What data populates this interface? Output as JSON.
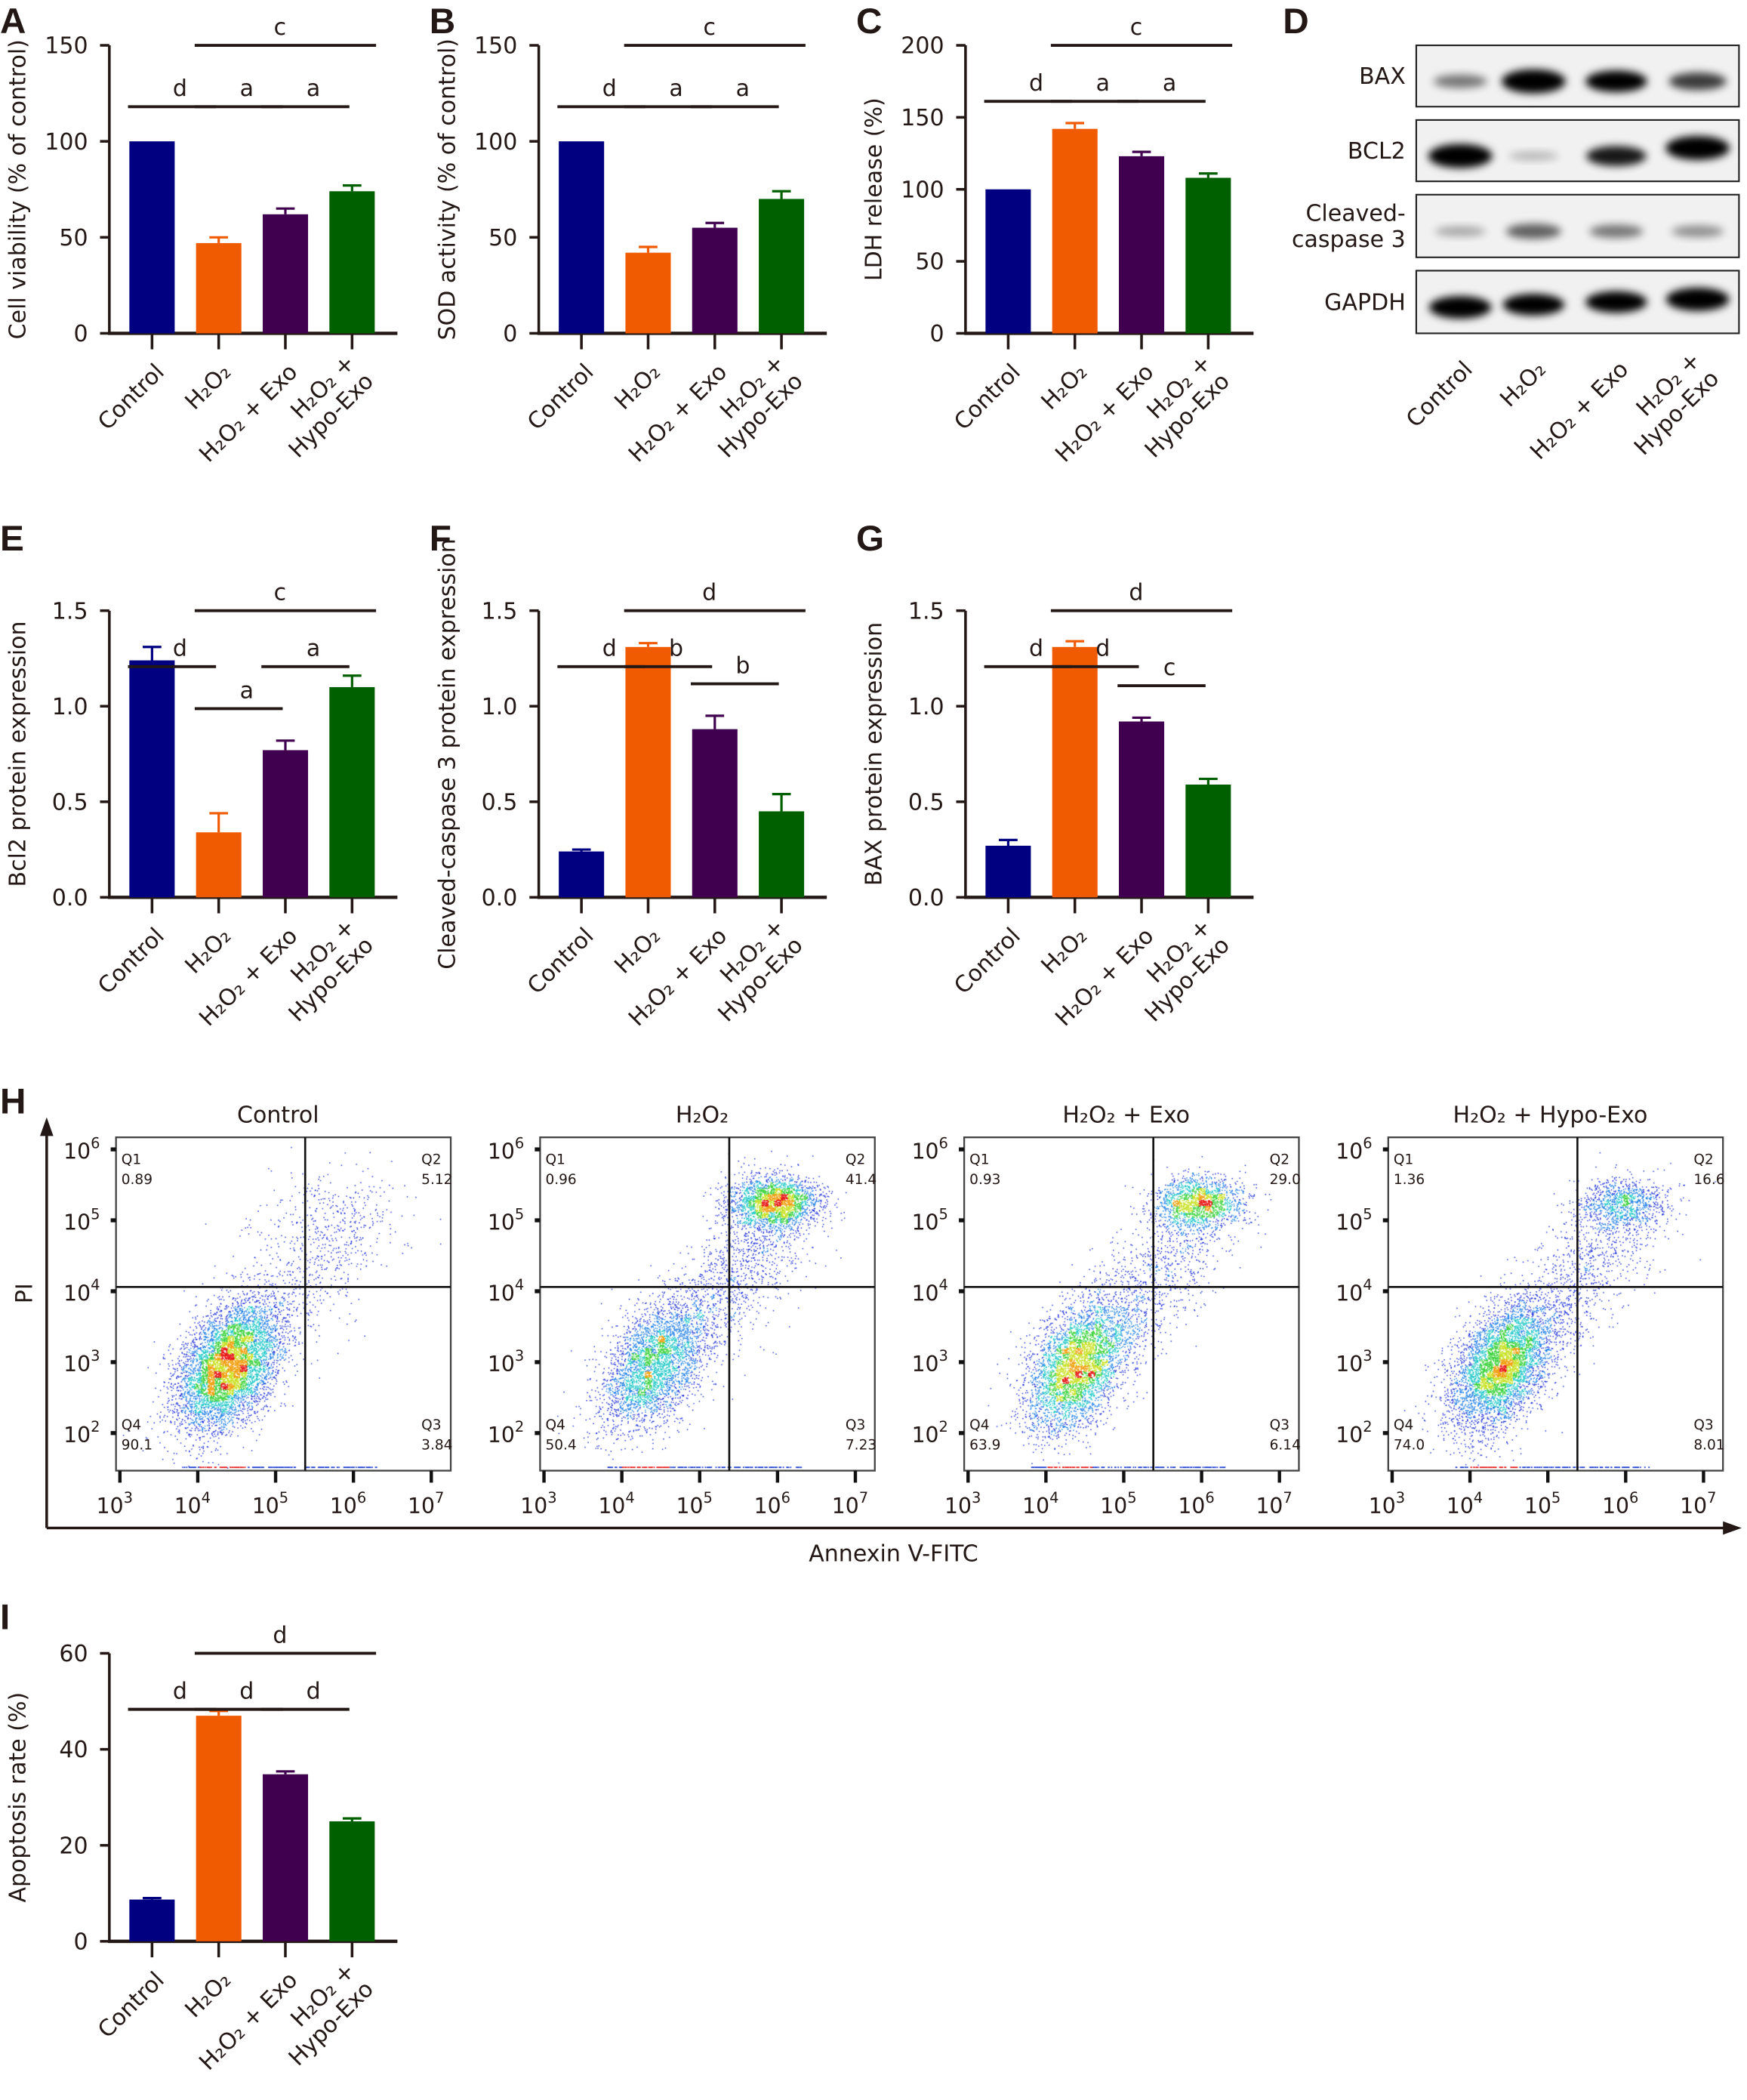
{
  "categories": [
    "Control",
    "H₂O₂",
    "H₂O₂ + Exo",
    "H₂O₂ +\nHypo-Exo"
  ],
  "colors": {
    "Control": "#000080",
    "H2O2": "#f05a00",
    "H2O2_Exo": "#40004f",
    "H2O2_HypoExo": "#006000",
    "axis": "#231815"
  },
  "chart_data": [
    {
      "panel": "A",
      "type": "bar",
      "ylabel": "Cell viability (% of control)",
      "ylim": [
        0,
        150
      ],
      "yticks": [
        0,
        50,
        100,
        150
      ],
      "values": [
        100,
        47,
        62,
        74
      ],
      "errors": [
        0,
        3,
        3,
        3
      ],
      "significance": [
        {
          "pair": [
            0,
            1
          ],
          "label": "d"
        },
        {
          "pair": [
            1,
            2
          ],
          "label": "a"
        },
        {
          "pair": [
            2,
            3
          ],
          "label": "a"
        },
        {
          "pair": [
            1,
            3
          ],
          "label": "c"
        }
      ]
    },
    {
      "panel": "B",
      "type": "bar",
      "ylabel": "SOD activity (% of control)",
      "ylim": [
        0,
        150
      ],
      "yticks": [
        0,
        50,
        100,
        150
      ],
      "values": [
        100,
        42,
        55,
        70
      ],
      "errors": [
        0,
        3,
        2.5,
        4
      ],
      "significance": [
        {
          "pair": [
            0,
            1
          ],
          "label": "d"
        },
        {
          "pair": [
            1,
            2
          ],
          "label": "a"
        },
        {
          "pair": [
            2,
            3
          ],
          "label": "a"
        },
        {
          "pair": [
            1,
            3
          ],
          "label": "c"
        }
      ]
    },
    {
      "panel": "C",
      "type": "bar",
      "ylabel": "LDH release (%)",
      "ylim": [
        0,
        200
      ],
      "yticks": [
        0,
        50,
        100,
        150,
        200
      ],
      "values": [
        100,
        142,
        123,
        108
      ],
      "errors": [
        0,
        4,
        3,
        3
      ],
      "significance": [
        {
          "pair": [
            0,
            1
          ],
          "label": "d"
        },
        {
          "pair": [
            1,
            2
          ],
          "label": "a"
        },
        {
          "pair": [
            2,
            3
          ],
          "label": "a"
        },
        {
          "pair": [
            1,
            3
          ],
          "label": "c"
        }
      ]
    },
    {
      "panel": "E",
      "type": "bar",
      "ylabel": "Bcl2 protein expression",
      "ylim": [
        0,
        1.5
      ],
      "yticks": [
        "0.0",
        "0.5",
        "1.0",
        "1.5"
      ],
      "values": [
        1.24,
        0.34,
        0.77,
        1.1
      ],
      "errors": [
        0.07,
        0.1,
        0.05,
        0.06
      ],
      "significance": [
        {
          "pair": [
            0,
            1
          ],
          "label": "d"
        },
        {
          "pair": [
            1,
            2
          ],
          "label": "a"
        },
        {
          "pair": [
            2,
            3
          ],
          "label": "a"
        },
        {
          "pair": [
            1,
            3
          ],
          "label": "c"
        }
      ]
    },
    {
      "panel": "F",
      "type": "bar",
      "ylabel": "Cleaved-caspase 3 protein expression",
      "ylim": [
        0,
        1.5
      ],
      "yticks": [
        "0.0",
        "0.5",
        "1.0",
        "1.5"
      ],
      "values": [
        0.24,
        1.31,
        0.88,
        0.45
      ],
      "errors": [
        0.01,
        0.02,
        0.07,
        0.09
      ],
      "significance": [
        {
          "pair": [
            0,
            1
          ],
          "label": "d"
        },
        {
          "pair": [
            1,
            2
          ],
          "label": "b"
        },
        {
          "pair": [
            2,
            3
          ],
          "label": "b"
        },
        {
          "pair": [
            1,
            3
          ],
          "label": "d"
        }
      ]
    },
    {
      "panel": "G",
      "type": "bar",
      "ylabel": "BAX protein expression",
      "ylim": [
        0,
        1.5
      ],
      "yticks": [
        "0.0",
        "0.5",
        "1.0",
        "1.5"
      ],
      "values": [
        0.27,
        1.31,
        0.92,
        0.59
      ],
      "errors": [
        0.03,
        0.03,
        0.02,
        0.03
      ],
      "significance": [
        {
          "pair": [
            0,
            1
          ],
          "label": "d"
        },
        {
          "pair": [
            1,
            2
          ],
          "label": "d"
        },
        {
          "pair": [
            2,
            3
          ],
          "label": "c"
        },
        {
          "pair": [
            1,
            3
          ],
          "label": "d"
        }
      ]
    },
    {
      "panel": "I",
      "type": "bar",
      "ylabel": "Apoptosis rate (%)",
      "ylim": [
        0,
        60
      ],
      "yticks": [
        0,
        20,
        40,
        60
      ],
      "values": [
        8.7,
        47,
        34.8,
        25
      ],
      "errors": [
        0.3,
        1,
        0.6,
        0.6
      ],
      "significance": [
        {
          "pair": [
            0,
            1
          ],
          "label": "d"
        },
        {
          "pair": [
            1,
            2
          ],
          "label": "d"
        },
        {
          "pair": [
            2,
            3
          ],
          "label": "d"
        },
        {
          "pair": [
            1,
            3
          ],
          "label": "d"
        }
      ]
    },
    {
      "panel": "H",
      "type": "scatter",
      "xlabel": "Annexin V-FITC",
      "ylabel": "PI",
      "x_scale": "log",
      "y_scale": "log",
      "xticks": [
        "3",
        "4",
        "5",
        "6",
        "7"
      ],
      "yticks": [
        "2",
        "3",
        "4",
        "5",
        "6"
      ],
      "tick_base": "10",
      "plots": [
        {
          "title": "Control",
          "quadrants": {
            "Q1": "0.89",
            "Q2": "5.12",
            "Q3": "3.84",
            "Q4": "90.1"
          }
        },
        {
          "title": "H₂O₂",
          "quadrants": {
            "Q1": "0.96",
            "Q2": "41.4",
            "Q3": "7.23",
            "Q4": "50.4"
          }
        },
        {
          "title": "H₂O₂ + Exo",
          "quadrants": {
            "Q1": "0.93",
            "Q2": "29.0",
            "Q3": "6.14",
            "Q4": "63.9"
          }
        },
        {
          "title": "H₂O₂ + Hypo-Exo",
          "quadrants": {
            "Q1": "1.36",
            "Q2": "16.6",
            "Q3": "8.01",
            "Q4": "74.0"
          }
        }
      ]
    }
  ],
  "western_blot": {
    "panel": "D",
    "proteins": [
      "BAX",
      "BCL2",
      "Cleaved-\ncaspase 3",
      "GAPDH"
    ],
    "lanes": [
      "Control",
      "H₂O₂",
      "H₂O₂ + Exo",
      "H₂O₂ +\nHypo-Exo"
    ],
    "band_intensity": [
      [
        0.35,
        1.0,
        0.85,
        0.6
      ],
      [
        1.0,
        0.08,
        0.75,
        1.0
      ],
      [
        0.15,
        0.45,
        0.35,
        0.25
      ],
      [
        0.9,
        0.85,
        0.85,
        0.95
      ]
    ]
  },
  "panel_letters": [
    "A",
    "B",
    "C",
    "D",
    "E",
    "F",
    "G",
    "H",
    "I"
  ]
}
